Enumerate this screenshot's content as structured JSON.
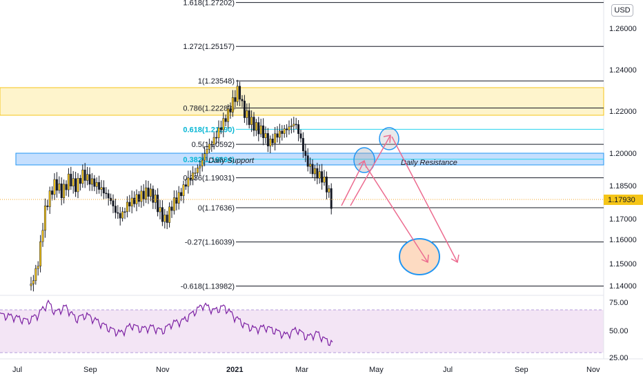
{
  "currency_badge": "USD",
  "colors": {
    "candle": "#131722",
    "candle_up_body": "#f5c518",
    "fib_line": "#131722",
    "fib_highlight": "#22d3ee",
    "yellow_zone": "#fef3c7",
    "yellow_zone_border": "#f5c518",
    "blue_zone": "#bfdbfe",
    "blue_zone_border": "#2196f3",
    "rsi": "#7b1fa2",
    "rsi_bg": "#f3e5f5",
    "projection": "#ec6b8f",
    "target_fill": "#fddbc2",
    "target_border": "#2196f3",
    "price_tag": "#f5c518"
  },
  "chart_data": {
    "type": "candlestick",
    "symbol_currency": "USD",
    "price_axis": {
      "ticks": [
        "1.26000",
        "1.24000",
        "1.22000",
        "1.20000",
        "1.18500",
        "1.17000",
        "1.16000",
        "1.15000",
        "1.14000"
      ],
      "current_price": "1.17930"
    },
    "time_axis": {
      "labels": [
        "Jul",
        "Sep",
        "Nov",
        "2021",
        "Mar",
        "May",
        "Jul",
        "Sep",
        "Nov"
      ]
    },
    "fib_levels": [
      {
        "label": "1.618(1.27202)",
        "price": 1.27202,
        "highlight": false
      },
      {
        "label": "1.272(1.25157)",
        "price": 1.25157,
        "highlight": false
      },
      {
        "label": "1(1.23548)",
        "price": 1.23548,
        "highlight": false
      },
      {
        "label": "0.786(1.22283)",
        "price": 1.22283,
        "highlight": false
      },
      {
        "label": "0.618(1.21290)",
        "price": 1.2129,
        "highlight": true
      },
      {
        "label": "0.5(1.20592)",
        "price": 1.20592,
        "highlight": false
      },
      {
        "label": "0.382(1.19894)",
        "price": 1.19894,
        "highlight": true
      },
      {
        "label": "0.236(1.19031)",
        "price": 1.19031,
        "highlight": false
      },
      {
        "label": "0(1.17636)",
        "price": 1.17636,
        "highlight": false
      },
      {
        "label": "-0.27(1.16039)",
        "price": 1.16039,
        "highlight": false
      },
      {
        "label": "-0.618(1.13982)",
        "price": 1.13982,
        "highlight": false
      }
    ],
    "zones": [
      {
        "name": "",
        "top": 1.2315,
        "bottom": 1.2195,
        "color": "yellow"
      },
      {
        "name": "Daily Support",
        "top": 1.2012,
        "bottom": 1.1962,
        "color": "blue"
      }
    ],
    "annotations": [
      {
        "text": "Daily Support"
      },
      {
        "text": "Daily Resistance"
      }
    ],
    "rsi": {
      "ticks": [
        "75.00",
        "50.00",
        "25.00"
      ],
      "upper": 70,
      "lower": 30
    }
  }
}
